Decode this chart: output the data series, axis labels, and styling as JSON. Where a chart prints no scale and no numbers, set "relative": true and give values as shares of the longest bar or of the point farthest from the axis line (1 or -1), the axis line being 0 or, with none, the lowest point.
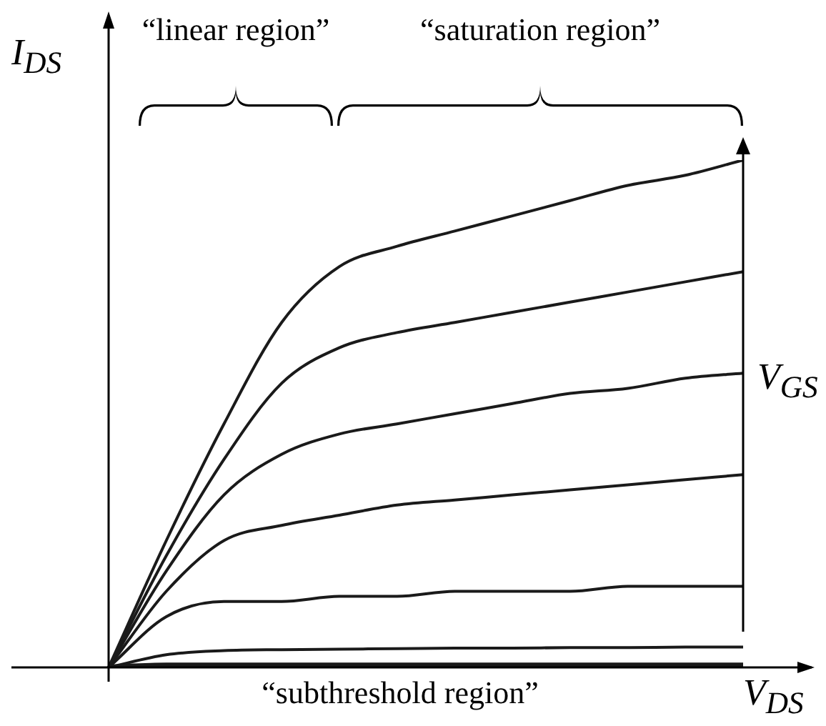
{
  "chart_data": {
    "type": "line",
    "relative": true,
    "xlabel": "V$_{DS}$",
    "ylabel": "I$_{DS}$",
    "legend": false,
    "marker": "none",
    "categories": [
      null,
      null,
      null,
      null,
      null,
      null,
      null,
      null,
      null,
      null,
      null,
      null
    ],
    "annotations": [
      "“linear region”",
      "“saturation region”",
      "V$_{GS}$",
      "“subthreshold region”"
    ],
    "series": [
      {
        "color": "#1a1a1a",
        "values": [
          0,
          0.25,
          0.48,
          0.68,
          0.79,
          0.83,
          0.86,
          0.89,
          0.92,
          0.95,
          0.97,
          1.0
        ]
      },
      {
        "color": "#1a1a1a",
        "values": [
          0,
          0.22,
          0.41,
          0.56,
          0.63,
          0.66,
          0.68,
          0.7,
          0.72,
          0.74,
          0.76,
          0.78
        ]
      },
      {
        "color": "#1a1a1a",
        "values": [
          0,
          0.19,
          0.34,
          0.42,
          0.46,
          0.48,
          0.5,
          0.52,
          0.54,
          0.55,
          0.57,
          0.58
        ]
      },
      {
        "color": "#1a1a1a",
        "values": [
          0,
          0.15,
          0.25,
          0.28,
          0.3,
          0.32,
          0.33,
          0.34,
          0.35,
          0.36,
          0.37,
          0.38
        ]
      },
      {
        "color": "#1a1a1a",
        "values": [
          0,
          0.1,
          0.13,
          0.13,
          0.14,
          0.14,
          0.15,
          0.15,
          0.15,
          0.16,
          0.16,
          0.16
        ]
      },
      {
        "color": "#1a1a1a",
        "values": [
          0,
          0.025,
          0.033,
          0.035,
          0.036,
          0.037,
          0.038,
          0.038,
          0.039,
          0.039,
          0.04,
          0.04
        ]
      },
      {
        "color": "#1a1a1a",
        "values": [
          0,
          0.004,
          0.004,
          0.004,
          0.004,
          0.004,
          0.004,
          0.004,
          0.004,
          0.004,
          0.004,
          0.004
        ]
      }
    ]
  }
}
